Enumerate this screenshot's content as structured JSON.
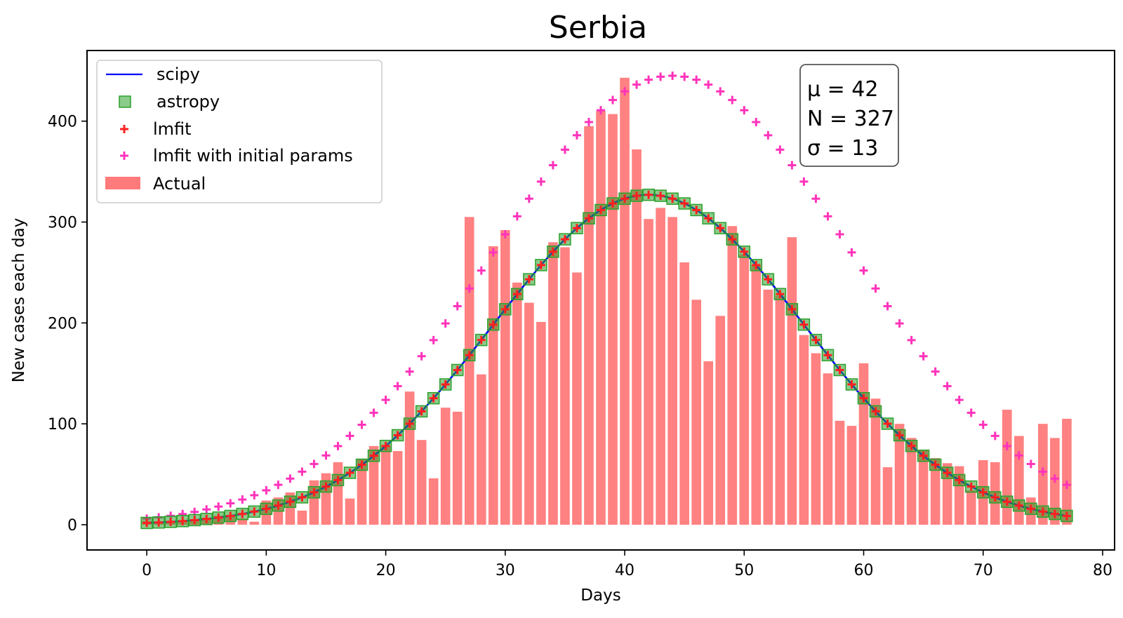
{
  "chart_data": {
    "type": "bar+line+scatter",
    "title": "Serbia",
    "xlabel": "Days",
    "ylabel": "New cases each day",
    "xlim": [
      -5,
      81
    ],
    "ylim": [
      -25,
      470
    ],
    "xticks": [
      0,
      10,
      20,
      30,
      40,
      50,
      60,
      70,
      80
    ],
    "yticks": [
      0,
      100,
      200,
      300,
      400
    ],
    "legend": {
      "location": "upper-left",
      "entries": [
        "scipy",
        "astropy",
        "lmfit",
        "lmfit with initial params",
        "Actual"
      ]
    },
    "annotation": {
      "location": "upper-right",
      "lines": [
        "μ = 42",
        "N = 327",
        "σ = 13"
      ]
    },
    "fit": {
      "mu": 42,
      "N": 327,
      "sigma": 13,
      "samples": "days 0–77"
    },
    "fit_initial": {
      "mu": 44,
      "N": 445,
      "sigma": 15,
      "samples": "days 0–77"
    },
    "series": [
      {
        "name": "Actual",
        "kind": "bar",
        "color": "#ff6b6b",
        "x_start": 0,
        "values": [
          4,
          3,
          3,
          4,
          5,
          7,
          9,
          9,
          6,
          3,
          24,
          27,
          32,
          14,
          44,
          51,
          62,
          26,
          65,
          78,
          78,
          73,
          132,
          84,
          46,
          116,
          112,
          305,
          149,
          276,
          292,
          240,
          220,
          201,
          280,
          275,
          250,
          395,
          410,
          407,
          443,
          372,
          303,
          314,
          305,
          260,
          223,
          162,
          207,
          296,
          268,
          257,
          233,
          227,
          285,
          188,
          170,
          150,
          103,
          98,
          160,
          125,
          57,
          100,
          86,
          74,
          66,
          61,
          58,
          34,
          64,
          62,
          114,
          88,
          27,
          100,
          86,
          105
        ]
      },
      {
        "name": "scipy",
        "kind": "line",
        "color": "#0000ff"
      },
      {
        "name": "astropy",
        "kind": "scatter-square",
        "color": "#2ca02c"
      },
      {
        "name": "lmfit",
        "kind": "scatter-plus",
        "color": "#ff2020"
      },
      {
        "name": "lmfit with initial params",
        "kind": "scatter-plus",
        "color": "#ff33bb"
      }
    ]
  }
}
